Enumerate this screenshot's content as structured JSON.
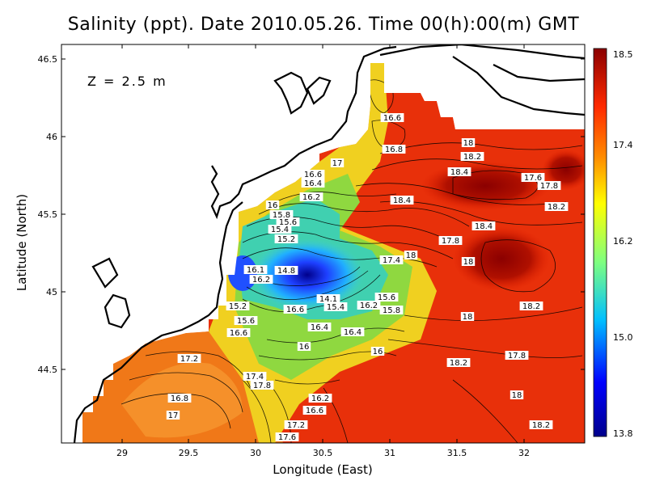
{
  "title": "Salinity (ppt). Date 2010.05.26. Time 00(h):00(m) GMT",
  "depth_label": "Z = 2.5 m",
  "x_axis": {
    "label": "Longitude (East)",
    "ticks": [
      "29",
      "29.5",
      "30",
      "30.5",
      "31",
      "31.5",
      "32"
    ]
  },
  "y_axis": {
    "label": "Latitude (North)",
    "ticks": [
      "46.5",
      "46",
      "45.5",
      "45",
      "44.5"
    ]
  },
  "colorbar": {
    "ticks": [
      "18.5",
      "17.4",
      "16.2",
      "15.0",
      "13.8"
    ]
  },
  "contour_labels": [
    "16.6",
    "16.8",
    "17",
    "16.6",
    "16.4",
    "16.2",
    "16",
    "15.8",
    "15.6",
    "15.4",
    "15.2",
    "14.8",
    "16.1",
    "16.2",
    "15.2",
    "15.6",
    "16.6",
    "16.6",
    "14.1",
    "15.4",
    "15.6",
    "16.2",
    "15.8",
    "16.4",
    "16.4",
    "16",
    "16",
    "17.2",
    "16.8",
    "17",
    "17.4",
    "17.8",
    "16.2",
    "16.6",
    "17.2",
    "17.6",
    "18",
    "18.2",
    "18.4",
    "17.6",
    "17.8",
    "18.4",
    "18.2",
    "18.4",
    "17.8",
    "17.4",
    "18",
    "18",
    "18",
    "18.2",
    "17.8",
    "18.2",
    "18",
    "18.2"
  ],
  "colors": {
    "high": "#8b0000",
    "mid_high": "#ff4500",
    "mid": "#ffd700",
    "mid_low": "#7fd45a",
    "low": "#1e90ff",
    "lowest": "#00008b"
  }
}
